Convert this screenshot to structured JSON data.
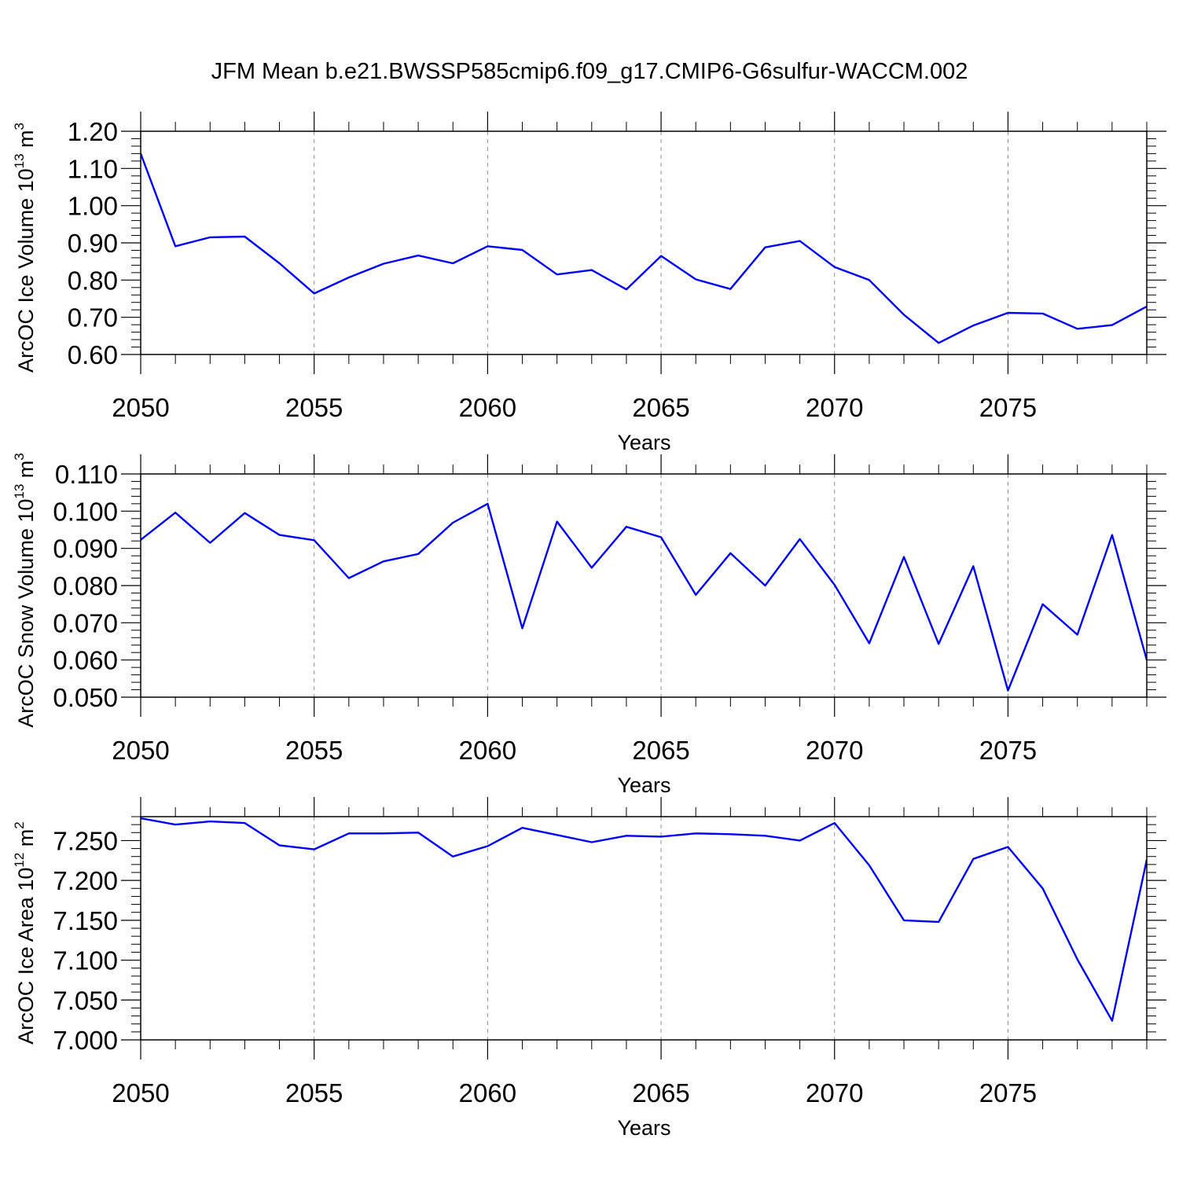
{
  "title": "JFM Mean b.e21.BWSSP585cmip6.f09_g17.CMIP6-G6sulfur-WACCM.002",
  "colors": {
    "line": "#0000ff",
    "axis": "#000000",
    "grid": "#8c8c8c"
  },
  "chart_data": [
    {
      "type": "line",
      "id": "ice-volume",
      "ylabel_main": "ArcOC Ice Volume 10",
      "ylabel_exp": "13",
      "ylabel_unit": " m",
      "ylabel_unit_exp": "3",
      "xlabel": "Years",
      "xlim": [
        2050,
        2079
      ],
      "ylim": [
        0.6,
        1.2
      ],
      "yticks": [
        0.6,
        0.7,
        0.8,
        0.9,
        1.0,
        1.1,
        1.2
      ],
      "ytick_labels": [
        "0.60",
        "0.70",
        "0.80",
        "0.90",
        "1.00",
        "1.10",
        "1.20"
      ],
      "xticks": [
        2050,
        2055,
        2060,
        2065,
        2070,
        2075
      ],
      "xtick_labels": [
        "2050",
        "2055",
        "2060",
        "2065",
        "2070",
        "2075"
      ],
      "grid_x": "dashed",
      "series": [
        {
          "name": "ArcOC Ice Volume",
          "x": [
            2050,
            2051,
            2052,
            2053,
            2054,
            2055,
            2056,
            2057,
            2058,
            2059,
            2060,
            2061,
            2062,
            2063,
            2064,
            2065,
            2066,
            2067,
            2068,
            2069,
            2070,
            2071,
            2072,
            2073,
            2074,
            2075,
            2076,
            2077,
            2078,
            2079
          ],
          "values": [
            1.14,
            0.891,
            0.915,
            0.917,
            0.845,
            0.764,
            0.807,
            0.844,
            0.866,
            0.845,
            0.891,
            0.881,
            0.815,
            0.827,
            0.775,
            0.865,
            0.802,
            0.776,
            0.888,
            0.905,
            0.835,
            0.8,
            0.707,
            0.631,
            0.678,
            0.712,
            0.71,
            0.669,
            0.679,
            0.729
          ]
        }
      ]
    },
    {
      "type": "line",
      "id": "snow-volume",
      "ylabel_main": "ArcOC Snow Volume 10",
      "ylabel_exp": "13",
      "ylabel_unit": " m",
      "ylabel_unit_exp": "3",
      "xlabel": "Years",
      "xlim": [
        2050,
        2079
      ],
      "ylim": [
        0.05,
        0.11
      ],
      "yticks": [
        0.05,
        0.06,
        0.07,
        0.08,
        0.09,
        0.1,
        0.11
      ],
      "ytick_labels": [
        "0.050",
        "0.060",
        "0.070",
        "0.080",
        "0.090",
        "0.100",
        "0.110"
      ],
      "xticks": [
        2050,
        2055,
        2060,
        2065,
        2070,
        2075
      ],
      "xtick_labels": [
        "2050",
        "2055",
        "2060",
        "2065",
        "2070",
        "2075"
      ],
      "grid_x": "dashed",
      "series": [
        {
          "name": "ArcOC Snow Volume",
          "x": [
            2050,
            2051,
            2052,
            2053,
            2054,
            2055,
            2056,
            2057,
            2058,
            2059,
            2060,
            2061,
            2062,
            2063,
            2064,
            2065,
            2066,
            2067,
            2068,
            2069,
            2070,
            2071,
            2072,
            2073,
            2074,
            2075,
            2076,
            2077,
            2078,
            2079
          ],
          "values": [
            0.0923,
            0.0996,
            0.0915,
            0.0995,
            0.0936,
            0.0922,
            0.082,
            0.0865,
            0.0885,
            0.0969,
            0.102,
            0.0685,
            0.0972,
            0.0848,
            0.0958,
            0.093,
            0.0775,
            0.0887,
            0.08,
            0.0925,
            0.0802,
            0.0645,
            0.0877,
            0.0643,
            0.0852,
            0.0518,
            0.075,
            0.0668,
            0.0936,
            0.06
          ]
        }
      ]
    },
    {
      "type": "line",
      "id": "ice-area",
      "ylabel_main": "ArcOC Ice Area 10",
      "ylabel_exp": "12",
      "ylabel_unit": " m",
      "ylabel_unit_exp": "2",
      "xlabel": "Years",
      "xlim": [
        2050,
        2079
      ],
      "ylim": [
        7.0,
        7.28
      ],
      "yticks": [
        7.0,
        7.05,
        7.1,
        7.15,
        7.2,
        7.25
      ],
      "ytick_labels": [
        "7.000",
        "7.050",
        "7.100",
        "7.150",
        "7.200",
        "7.250"
      ],
      "xticks": [
        2050,
        2055,
        2060,
        2065,
        2070,
        2075
      ],
      "xtick_labels": [
        "2050",
        "2055",
        "2060",
        "2065",
        "2070",
        "2075"
      ],
      "grid_x": "dashed",
      "series": [
        {
          "name": "ArcOC Ice Area",
          "x": [
            2050,
            2051,
            2052,
            2053,
            2054,
            2055,
            2056,
            2057,
            2058,
            2059,
            2060,
            2061,
            2062,
            2063,
            2064,
            2065,
            2066,
            2067,
            2068,
            2069,
            2070,
            2071,
            2072,
            2073,
            2074,
            2075,
            2076,
            2077,
            2078,
            2079
          ],
          "values": [
            7.278,
            7.27,
            7.274,
            7.272,
            7.244,
            7.239,
            7.259,
            7.259,
            7.26,
            7.23,
            7.243,
            7.266,
            7.257,
            7.248,
            7.256,
            7.255,
            7.259,
            7.258,
            7.256,
            7.25,
            7.272,
            7.219,
            7.15,
            7.148,
            7.227,
            7.242,
            7.19,
            7.101,
            7.024,
            7.226
          ]
        }
      ]
    }
  ]
}
